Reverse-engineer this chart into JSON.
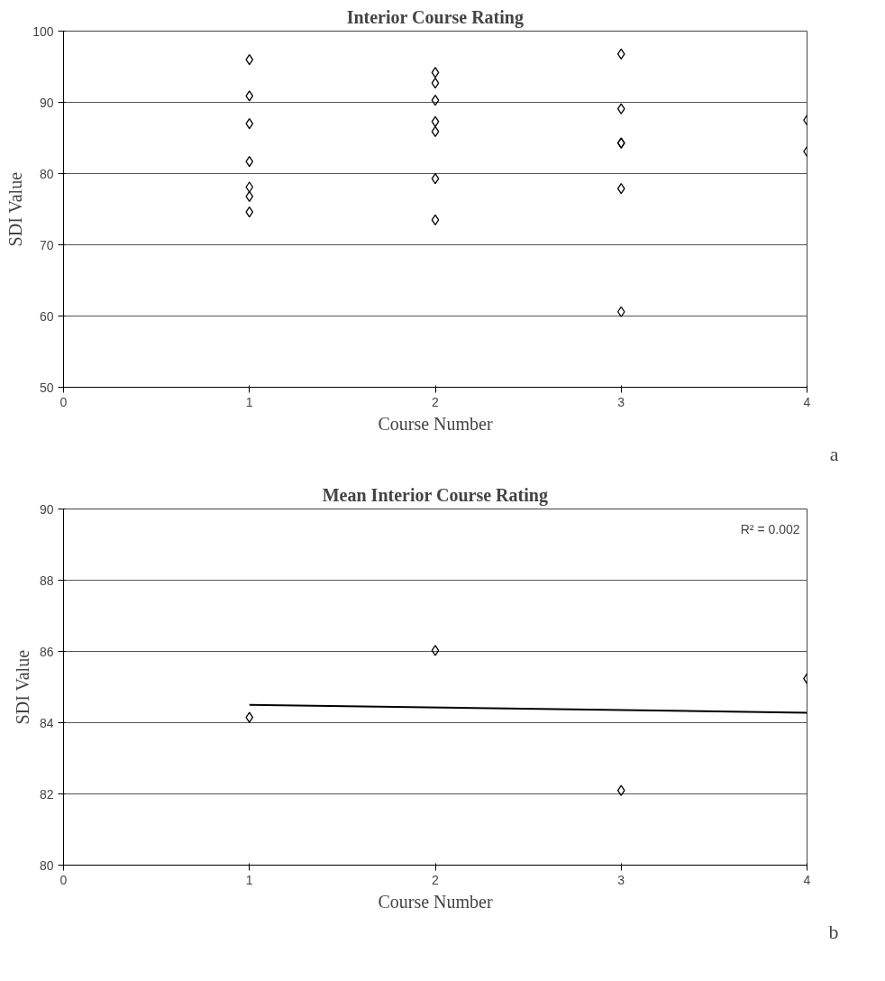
{
  "chart_data": [
    {
      "type": "scatter",
      "title": "Interior Course Rating",
      "xlabel": "Course Number",
      "ylabel": "SDI Value",
      "xlim": [
        0,
        4
      ],
      "xticks": [
        0,
        1,
        2,
        3,
        4
      ],
      "ylim": [
        50,
        100
      ],
      "yticks": [
        50,
        60,
        70,
        80,
        90,
        100
      ],
      "grid": "y",
      "marker": "diamond",
      "series": [
        {
          "color": "#000000",
          "x": [
            1,
            1,
            1,
            1,
            1,
            1,
            1,
            2,
            2,
            2,
            2,
            2,
            2,
            2,
            3,
            3,
            3,
            3,
            3,
            3,
            4,
            4
          ],
          "values": [
            96.0,
            90.9,
            87.0,
            81.7,
            78.1,
            76.8,
            74.6,
            94.2,
            92.7,
            90.3,
            87.3,
            85.9,
            79.3,
            73.5,
            96.8,
            89.1,
            84.3,
            84.3,
            77.9,
            60.6,
            87.5,
            83.1
          ]
        }
      ],
      "annotations": [
        "a"
      ]
    },
    {
      "type": "scatter",
      "title": "Mean Interior Course Rating",
      "xlabel": "Course Number",
      "ylabel": "SDI Value",
      "xlim": [
        0,
        4
      ],
      "xticks": [
        0,
        1,
        2,
        3,
        4
      ],
      "ylim": [
        80,
        90
      ],
      "yticks": [
        80,
        82,
        84,
        86,
        88,
        90
      ],
      "grid": "y",
      "marker": "diamond",
      "series": [
        {
          "color": "#000000",
          "x": [
            1,
            2,
            3,
            4
          ],
          "values": [
            84.15,
            86.03,
            82.1,
            85.24
          ]
        },
        {
          "type": "line",
          "marker": "none",
          "color": "#000000",
          "x": [
            1,
            4
          ],
          "values": [
            84.5,
            84.28
          ]
        }
      ],
      "annotations": [
        "R² = 0.002",
        "b"
      ]
    }
  ]
}
